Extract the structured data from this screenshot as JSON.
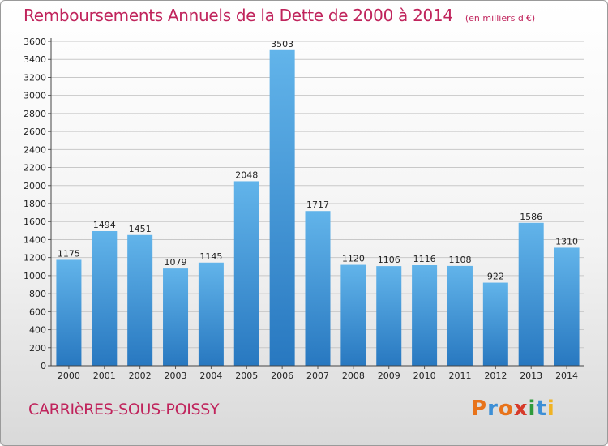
{
  "header": {
    "title": "Remboursements Annuels de la Dette de 2000 à 2014",
    "subtitle": "(en milliers d'€)"
  },
  "footer": {
    "place": "CARRIèRES-SOUS-POISSY",
    "logo_text": "Proxiti",
    "logo_colors": [
      "#e8731a",
      "#3d8fd6",
      "#e8731a",
      "#d63a2a",
      "#2f9b3c",
      "#3d8fd6",
      "#f0b323"
    ]
  },
  "colors": {
    "title": "#c0245c",
    "bar_top": "#62b4ea",
    "bar_bottom": "#2878c0",
    "grid": "#c8c8c8"
  },
  "chart_data": {
    "type": "bar",
    "title": "Remboursements Annuels de la Dette de 2000 à 2014",
    "subtitle": "(en milliers d'€)",
    "xlabel": "",
    "ylabel": "",
    "categories": [
      "2000",
      "2001",
      "2002",
      "2003",
      "2004",
      "2005",
      "2006",
      "2007",
      "2008",
      "2009",
      "2010",
      "2011",
      "2012",
      "2013",
      "2014"
    ],
    "values": [
      1175,
      1494,
      1451,
      1079,
      1145,
      2048,
      3503,
      1717,
      1120,
      1106,
      1116,
      1108,
      922,
      1586,
      1310
    ],
    "ylim": [
      0,
      3600
    ],
    "yticks": [
      0,
      200,
      400,
      600,
      800,
      1000,
      1200,
      1400,
      1600,
      1800,
      2000,
      2200,
      2400,
      2600,
      2800,
      3000,
      3200,
      3400,
      3600
    ],
    "grid": true,
    "data_labels": true
  }
}
